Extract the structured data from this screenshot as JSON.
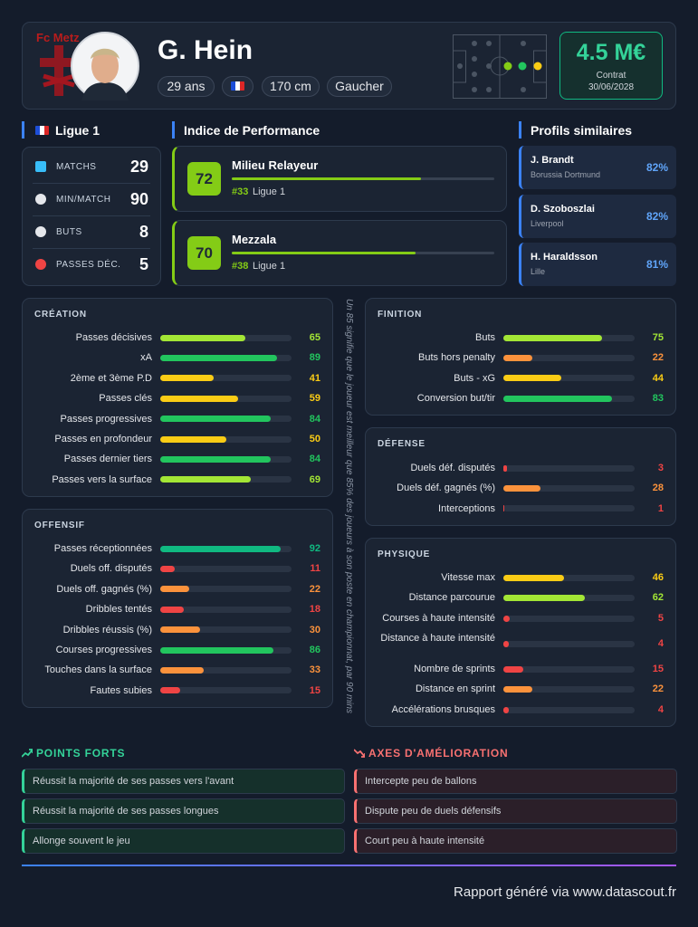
{
  "header": {
    "club": "Fc Metz",
    "name": "G. Hein",
    "tags": [
      "29 ans",
      "170 cm",
      "Gaucher"
    ],
    "value": "4.5 M€",
    "contract_label": "Contrat",
    "contract_date": "30/06/2028"
  },
  "league": {
    "title": "Ligue 1",
    "stats": [
      {
        "label": "MATCHS",
        "value": 29
      },
      {
        "label": "MIN/MATCH",
        "value": 90
      },
      {
        "label": "BUTS",
        "value": 8
      },
      {
        "label": "PASSES DÉC.",
        "value": 5
      }
    ]
  },
  "performance": {
    "title": "Indice de Performance",
    "roles": [
      {
        "score": 72,
        "name": "Milieu Relayeur",
        "rank": "#33",
        "league": "Ligue 1"
      },
      {
        "score": 70,
        "name": "Mezzala",
        "rank": "#38",
        "league": "Ligue 1"
      }
    ]
  },
  "similar": {
    "title": "Profils similaires",
    "players": [
      {
        "name": "J. Brandt",
        "club": "Borussia Dortmund",
        "match": "82%"
      },
      {
        "name": "D. Szoboszlai",
        "club": "Liverpool",
        "match": "82%"
      },
      {
        "name": "H. Haraldsson",
        "club": "Lille",
        "match": "81%"
      }
    ]
  },
  "creation": {
    "title": "CRÉATION",
    "metrics": [
      {
        "label": "Passes décisives",
        "value": 65
      },
      {
        "label": "xA",
        "value": 89
      },
      {
        "label": "2ème et 3ème P.D",
        "value": 41
      },
      {
        "label": "Passes clés",
        "value": 59
      },
      {
        "label": "Passes progressives",
        "value": 84
      },
      {
        "label": "Passes en profondeur",
        "value": 50
      },
      {
        "label": "Passes dernier tiers",
        "value": 84
      },
      {
        "label": "Passes vers la surface",
        "value": 69
      }
    ]
  },
  "offensif": {
    "title": "OFFENSIF",
    "metrics": [
      {
        "label": "Passes réceptionnées",
        "value": 92
      },
      {
        "label": "Duels off. disputés",
        "value": 11
      },
      {
        "label": "Duels off. gagnés (%)",
        "value": 22
      },
      {
        "label": "Dribbles tentés",
        "value": 18
      },
      {
        "label": "Dribbles réussis (%)",
        "value": 30
      },
      {
        "label": "Courses progressives",
        "value": 86
      },
      {
        "label": "Touches dans la surface",
        "value": 33
      },
      {
        "label": "Fautes subies",
        "value": 15
      }
    ]
  },
  "finition": {
    "title": "FINITION",
    "metrics": [
      {
        "label": "Buts",
        "value": 75
      },
      {
        "label": "Buts hors penalty",
        "value": 22
      },
      {
        "label": "Buts - xG",
        "value": 44
      },
      {
        "label": "Conversion but/tir",
        "value": 83
      }
    ]
  },
  "defense": {
    "title": "DÉFENSE",
    "metrics": [
      {
        "label": "Duels déf. disputés",
        "value": 3
      },
      {
        "label": "Duels déf. gagnés (%)",
        "value": 28
      },
      {
        "label": "Interceptions",
        "value": 1
      }
    ]
  },
  "physique": {
    "title": "PHYSIQUE",
    "metrics": [
      {
        "label": "Vitesse max",
        "value": 46
      },
      {
        "label": "Distance parcourue",
        "value": 62
      },
      {
        "label": "Courses à haute intensité",
        "value": 5
      },
      {
        "label": "Distance à haute intensité",
        "value": 4
      },
      {
        "label": "Nombre de sprints",
        "value": 15
      },
      {
        "label": "Distance en sprint",
        "value": 22
      },
      {
        "label": "Accélérations brusques",
        "value": 4
      }
    ]
  },
  "note": "Un 85 signifie que le joueur est meilleur que 85% des joueurs à son poste en championnat, par 90 mins",
  "strengths": {
    "title": "POINTS FORTS",
    "items": [
      "Réussit la majorité de ses passes vers l'avant",
      "Réussit la majorité de ses passes longues",
      "Allonge souvent le jeu"
    ]
  },
  "weaknesses": {
    "title": "AXES D'AMÉLIORATION",
    "items": [
      "Intercepte peu de ballons",
      "Dispute peu de duels défensifs",
      "Court peu à haute intensité"
    ]
  },
  "footer": "Rapport généré via www.datascout.fr"
}
